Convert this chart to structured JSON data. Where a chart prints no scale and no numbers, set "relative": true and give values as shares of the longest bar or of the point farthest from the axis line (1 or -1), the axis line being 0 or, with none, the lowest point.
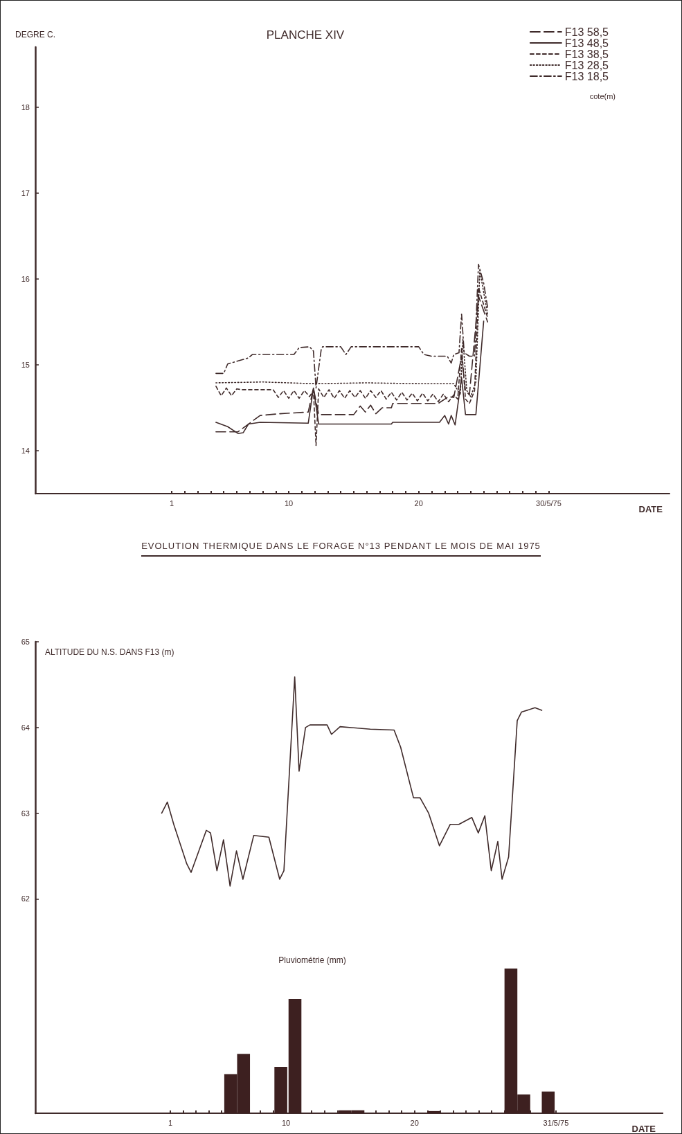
{
  "chart_data": [
    {
      "type": "line",
      "title": "PLANCHE XIV",
      "ylabel": "DEGRE C.",
      "xlabel": "DATE",
      "legend_title": "cote(m)",
      "legend": "top right",
      "marker": "none",
      "grid": false,
      "annotations": [
        "EVOLUTION THERMIQUE DANS LE FORAGE N°13 PENDANT LE MOIS DE MAI 1975"
      ],
      "xlim": [
        -9.5,
        39.3
      ],
      "xticks": [
        1,
        {
          "value": 2,
          "label": null
        },
        {
          "value": 3,
          "label": null
        },
        {
          "value": 4,
          "label": null
        },
        {
          "value": 5,
          "label": null
        },
        {
          "value": 6,
          "label": null
        },
        {
          "value": 7,
          "label": null
        },
        {
          "value": 8,
          "label": null
        },
        {
          "value": 9,
          "label": null
        },
        10,
        {
          "value": 11,
          "label": null
        },
        {
          "value": 12,
          "label": null
        },
        {
          "value": 13,
          "label": null
        },
        {
          "value": 14,
          "label": null
        },
        {
          "value": 15,
          "label": null
        },
        {
          "value": 16,
          "label": null
        },
        {
          "value": 17,
          "label": null
        },
        {
          "value": 18,
          "label": null
        },
        {
          "value": 19,
          "label": null
        },
        20,
        {
          "value": 21,
          "label": null
        },
        {
          "value": 22,
          "label": null
        },
        {
          "value": 23,
          "label": null
        },
        {
          "value": 24,
          "label": null
        },
        {
          "value": 25,
          "label": null
        },
        {
          "value": 26,
          "label": null
        },
        {
          "value": 27,
          "label": null
        },
        {
          "value": 28,
          "label": null
        },
        {
          "value": 29,
          "label": null
        },
        {
          "value": 30,
          "label": "30/5/75"
        }
      ],
      "ylim": [
        13.5,
        18.7
      ],
      "yticks": [
        14,
        15,
        16,
        17,
        18
      ],
      "series": [
        {
          "name": "F13 58,5",
          "color": "#3f2a2a",
          "line_style": "longdash",
          "x": [
            4.4,
            6.1,
            6.9,
            7.8,
            9.3,
            11.5,
            11.9,
            12.3,
            15.0,
            15.5,
            15.9,
            16.3,
            16.7,
            17.2,
            17.9,
            18.0,
            21.5,
            22.3,
            22.7,
            23.3,
            23.6,
            23.9,
            24.6,
            25.3
          ],
          "values": [
            14.22,
            14.22,
            14.31,
            14.41,
            14.43,
            14.45,
            14.73,
            14.42,
            14.42,
            14.52,
            14.45,
            14.53,
            14.43,
            14.5,
            14.5,
            14.55,
            14.55,
            14.63,
            14.62,
            15.1,
            14.7,
            14.65,
            15.8,
            15.5
          ]
        },
        {
          "name": "F13 48,5",
          "color": "#3f2a2a",
          "line_style": "solid",
          "x": [
            4.4,
            5.3,
            6.1,
            6.5,
            6.9,
            7.8,
            11.5,
            11.9,
            12.3,
            17.9,
            18.0,
            21.6,
            22.0,
            22.3,
            22.5,
            22.8,
            23.3,
            23.6,
            24.4,
            25.0
          ],
          "values": [
            14.33,
            14.28,
            14.2,
            14.21,
            14.31,
            14.33,
            14.32,
            14.73,
            14.31,
            14.31,
            14.33,
            14.33,
            14.41,
            14.31,
            14.41,
            14.3,
            14.85,
            14.42,
            14.42,
            15.51
          ]
        },
        {
          "name": "F13 38,5",
          "color": "#3f2a2a",
          "line_style": "dashed",
          "x": [
            4.4,
            4.8,
            5.2,
            5.6,
            6.0,
            6.4,
            8.8,
            9.2,
            9.6,
            10.0,
            10.4,
            10.8,
            11.2,
            11.6,
            11.9,
            12.1,
            12.3,
            12.7,
            13.1,
            13.5,
            13.9,
            14.3,
            14.7,
            15.1,
            15.5,
            15.9,
            16.3,
            16.7,
            17.1,
            17.5,
            17.9,
            18.3,
            18.7,
            19.1,
            19.5,
            19.9,
            20.3,
            20.7,
            21.1,
            21.5,
            21.9,
            22.3,
            22.7,
            23.0,
            23.3,
            23.6,
            23.9,
            24.3,
            24.6,
            25.0,
            25.3
          ],
          "values": [
            14.75,
            14.64,
            14.73,
            14.64,
            14.72,
            14.71,
            14.71,
            14.62,
            14.7,
            14.61,
            14.7,
            14.61,
            14.7,
            14.63,
            14.7,
            14.06,
            14.72,
            14.62,
            14.71,
            14.61,
            14.7,
            14.61,
            14.7,
            14.62,
            14.7,
            14.61,
            14.7,
            14.62,
            14.7,
            14.6,
            14.68,
            14.59,
            14.68,
            14.59,
            14.67,
            14.58,
            14.67,
            14.58,
            14.66,
            14.57,
            14.66,
            14.57,
            14.65,
            14.6,
            15.2,
            14.6,
            14.55,
            14.7,
            15.9,
            15.7,
            15.55
          ]
        },
        {
          "name": "F13 28,5",
          "color": "#3f2a2a",
          "line_style": "dotted",
          "x": [
            4.4,
            8.0,
            12.0,
            16.0,
            20.0,
            22.7,
            23.2,
            23.4,
            23.7,
            24.0,
            24.4,
            24.7,
            25.3
          ],
          "values": [
            14.79,
            14.8,
            14.78,
            14.79,
            14.78,
            14.78,
            14.65,
            15.3,
            14.7,
            14.63,
            14.8,
            16.1,
            15.59
          ]
        },
        {
          "name": "F13 18,5",
          "color": "#3f2a2a",
          "line_style": "dashdot",
          "x": [
            4.4,
            5.0,
            5.3,
            6.9,
            7.2,
            10.4,
            10.8,
            11.6,
            11.9,
            12.1,
            12.5,
            12.6,
            14.0,
            14.4,
            14.8,
            15.4,
            20.0,
            20.4,
            21.0,
            22.2,
            22.5,
            22.7,
            23.1,
            23.3,
            23.5,
            23.9,
            24.3,
            24.6,
            25.0,
            25.3
          ],
          "values": [
            14.9,
            14.9,
            15.01,
            15.08,
            15.12,
            15.12,
            15.2,
            15.21,
            15.16,
            14.73,
            15.18,
            15.21,
            15.21,
            15.12,
            15.21,
            15.21,
            15.21,
            15.12,
            15.1,
            15.1,
            15.02,
            15.12,
            15.14,
            15.59,
            15.14,
            15.1,
            15.1,
            16.17,
            15.95,
            15.67
          ]
        }
      ]
    },
    {
      "type": "line",
      "ylabel": "ALTITUDE DU N.S. DANS F13 (m)",
      "marker": "none",
      "grid": false,
      "tick_labels": "y",
      "xlim": [
        -9.5,
        39.3
      ],
      "ylim": [
        59.5,
        65
      ],
      "yticks": [
        62,
        63,
        64,
        65
      ],
      "series": [
        {
          "color": "#3f2a2a",
          "line_style": "solid",
          "x": [
            0.33,
            0.77,
            1.27,
            2.28,
            2.62,
            3.8,
            4.13,
            4.63,
            5.14,
            5.65,
            6.15,
            6.65,
            7.49,
            8.67,
            9.51,
            9.84,
            10.68,
            11.02,
            11.52,
            11.86,
            13.2,
            13.54,
            14.21,
            16.56,
            18.41,
            18.92,
            19.92,
            20.43,
            21.1,
            21.94,
            22.78,
            23.45,
            24.46,
            24.96,
            25.47,
            25.97,
            26.48,
            26.81,
            27.32,
            27.99,
            28.32,
            29.37,
            29.9
          ],
          "values": [
            63.0,
            63.13,
            62.87,
            62.41,
            62.31,
            62.8,
            62.77,
            62.33,
            62.69,
            62.15,
            62.56,
            62.23,
            62.74,
            62.72,
            62.23,
            62.33,
            64.59,
            63.49,
            64.0,
            64.03,
            64.03,
            63.92,
            64.01,
            63.98,
            63.97,
            63.77,
            63.18,
            63.18,
            63.0,
            62.62,
            62.87,
            62.87,
            62.95,
            62.77,
            62.97,
            62.33,
            62.67,
            62.23,
            62.49,
            64.08,
            64.18,
            64.23,
            64.2
          ]
        }
      ]
    },
    {
      "type": "bar",
      "title": "Pluviométrie (mm)",
      "xlabel": "DATE",
      "relative": true,
      "color": "#3d2020",
      "grid": false,
      "x": [
        5.7,
        6.7,
        9.6,
        10.7,
        14.6,
        15.6,
        21.5,
        27.5,
        28.5,
        30.4
      ],
      "values": [
        0.27,
        0.41,
        0.32,
        0.79,
        0.02,
        0.02,
        0.015,
        1,
        0.13,
        0.15
      ],
      "xlim": [
        -9.5,
        39.3
      ],
      "xticks": [
        1,
        {
          "value": 2,
          "label": null
        },
        {
          "value": 3,
          "label": null
        },
        {
          "value": 4,
          "label": null
        },
        {
          "value": 5,
          "label": null
        },
        {
          "value": 6,
          "label": null
        },
        {
          "value": 7,
          "label": null
        },
        {
          "value": 8,
          "label": null
        },
        {
          "value": 9,
          "label": null
        },
        10,
        {
          "value": 11,
          "label": null
        },
        {
          "value": 12,
          "label": null
        },
        {
          "value": 13,
          "label": null
        },
        {
          "value": 14,
          "label": null
        },
        {
          "value": 15,
          "label": null
        },
        {
          "value": 16,
          "label": null
        },
        {
          "value": 17,
          "label": null
        },
        {
          "value": 18,
          "label": null
        },
        {
          "value": 19,
          "label": null
        },
        20,
        {
          "value": 21,
          "label": null
        },
        {
          "value": 22,
          "label": null
        },
        {
          "value": 23,
          "label": null
        },
        {
          "value": 24,
          "label": null
        },
        {
          "value": 25,
          "label": null
        },
        {
          "value": 26,
          "label": null
        },
        {
          "value": 27,
          "label": null
        },
        {
          "value": 28,
          "label": null
        },
        {
          "value": 29,
          "label": null
        },
        {
          "value": 30,
          "label": null
        },
        {
          "value": 31,
          "label": "31/5/75"
        }
      ]
    }
  ]
}
